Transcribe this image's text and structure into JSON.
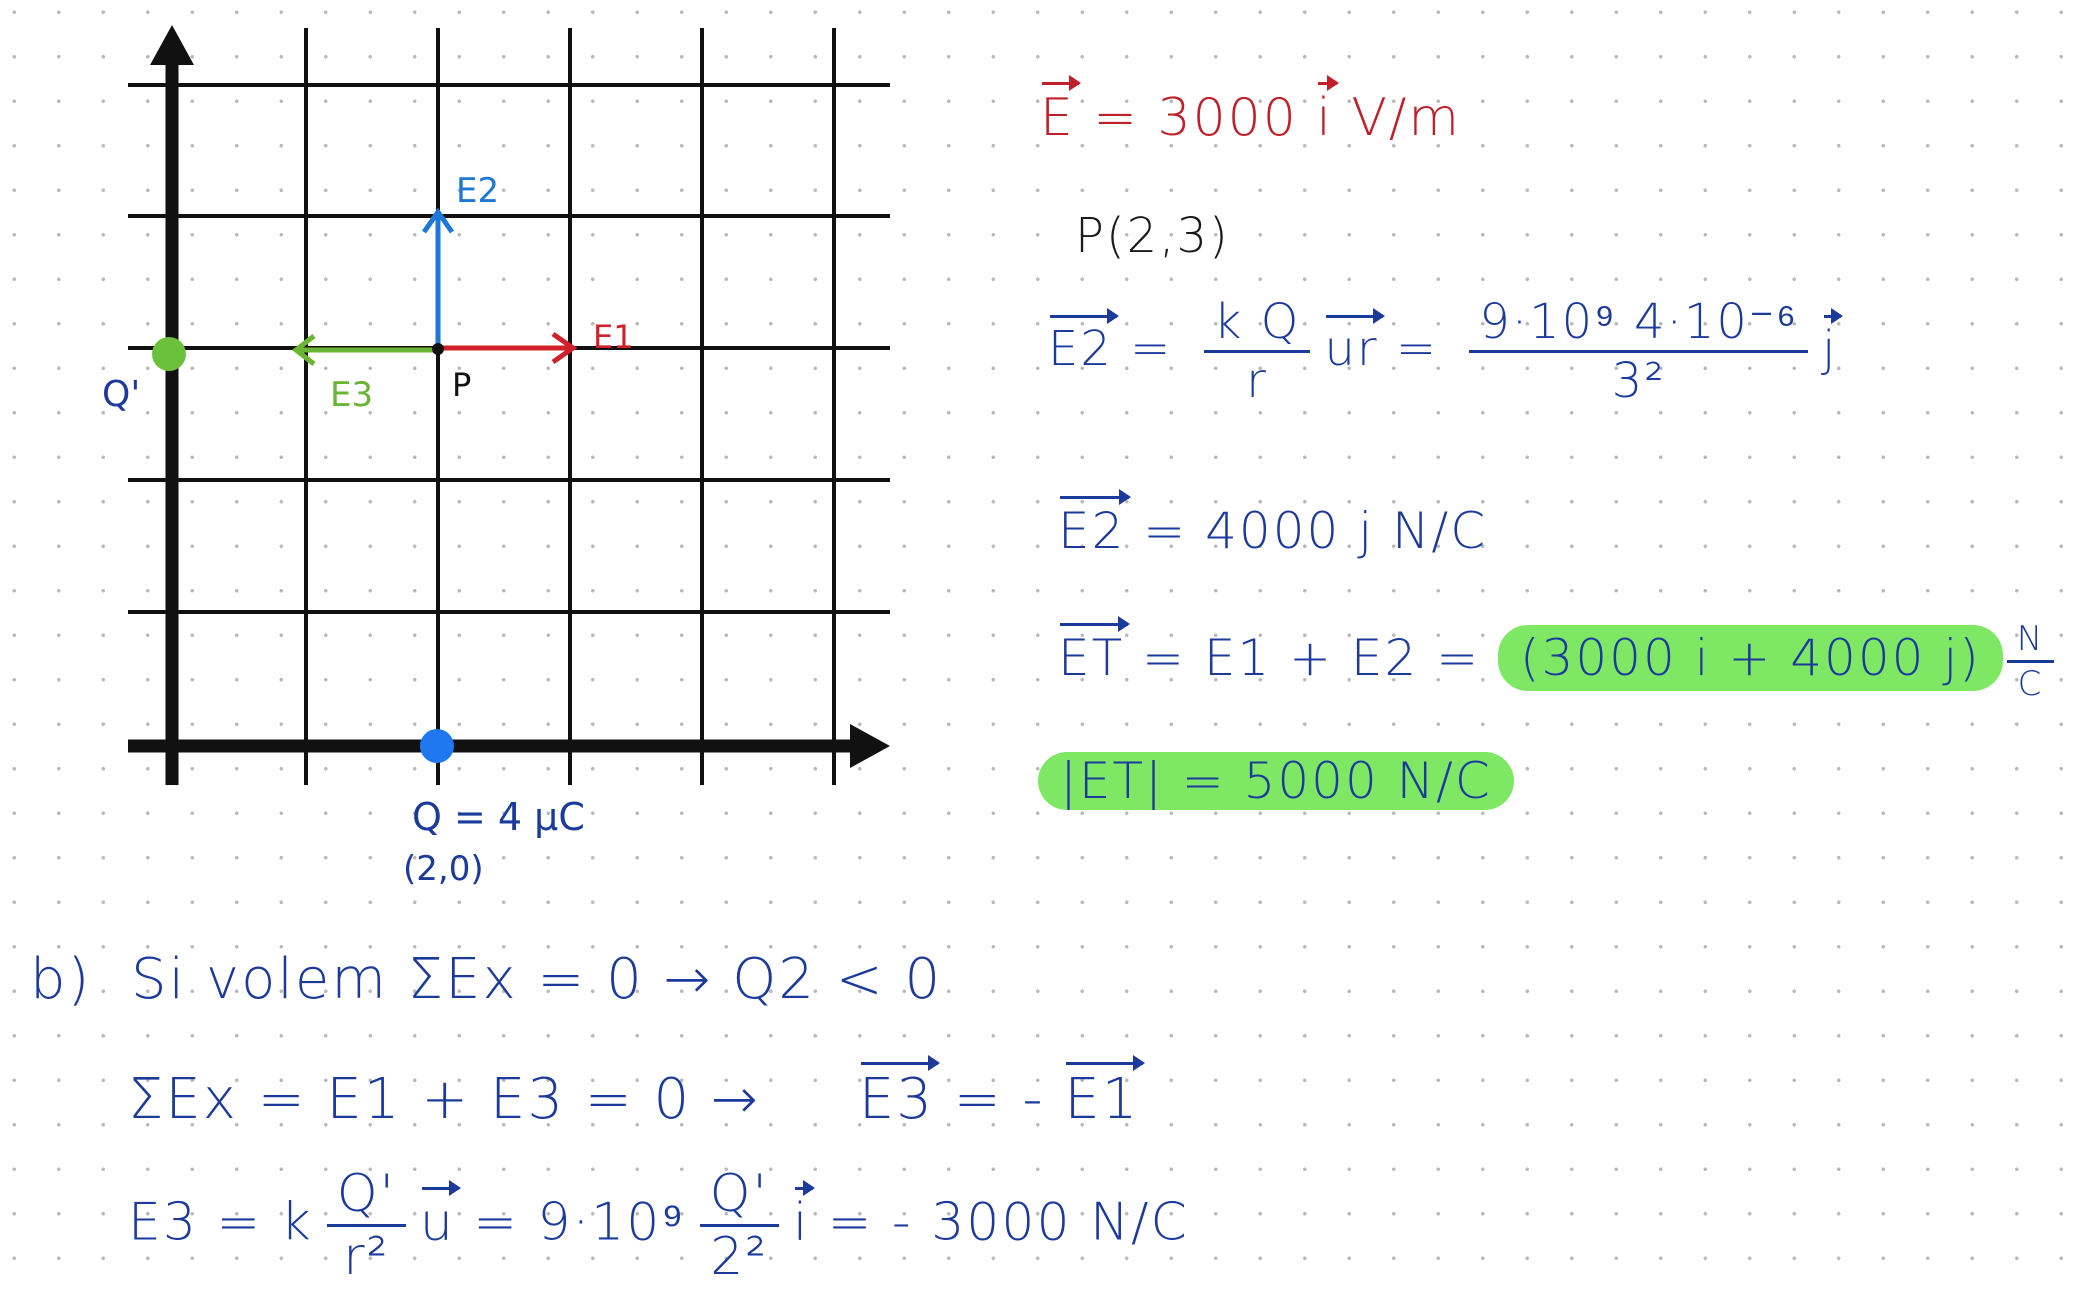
{
  "diagram": {
    "labels": {
      "e2": "E2",
      "e1": "E1",
      "e3": "E3",
      "p": "P",
      "q_prime": "Q'",
      "q": "Q = 4 μC",
      "q_coords": "(2,0)"
    },
    "colors": {
      "grid": "#111111",
      "e1": "#d0202a",
      "e2": "#1f78d8",
      "e3": "#6ab533",
      "charge_q": "#1f78f0",
      "charge_q_prime": "#6cc13c",
      "ink_blue": "#1b3a9c"
    }
  },
  "equations": {
    "e1": {
      "lhs": "E",
      "rest": " = 3000 ",
      "unit_vec": "i",
      "unit": " V/m"
    },
    "point": "P(2,3)",
    "e2_def": {
      "lhs": "E2",
      "eq": " = ",
      "num": "k Q",
      "den": "r",
      "ur": "ur",
      "eq2": " = ",
      "num2": "9·10⁹ 4·10⁻⁶",
      "den2": "3²",
      "j": "j"
    },
    "e2_val": {
      "lhs": "E2",
      "rest": " = 4000 j N/C"
    },
    "et": {
      "lhs": "ET",
      "rest": " = E1 + E2 = ",
      "highlight": "(3000 i + 4000 j)",
      "unit_num": "N",
      "unit_den": "C"
    },
    "et_mag": "|ET| = 5000 N/C",
    "part_b": {
      "label": "b)",
      "text": "Si volem  ΣEx = 0 → Q2 < 0"
    },
    "sum_ex": {
      "text": "ΣEx = E1 + E3 = 0 →",
      "e3": "E3",
      "eq": " = - ",
      "e1": "E1"
    },
    "e3_eq": {
      "lhs": "E3 = k",
      "num": "Q'",
      "den": "r²",
      "u": "u",
      "mid": " = 9·10⁹",
      "num2": "Q'",
      "den2": "2²",
      "i": "i",
      "result": " = - 3000 N/C"
    }
  }
}
